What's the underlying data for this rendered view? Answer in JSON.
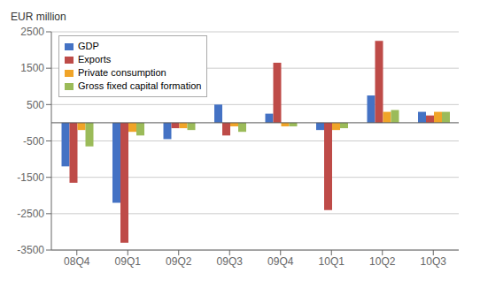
{
  "chart_data": {
    "type": "bar",
    "ylabel": "EUR million",
    "categories": [
      "08Q4",
      "09Q1",
      "09Q2",
      "09Q3",
      "09Q4",
      "10Q1",
      "10Q2",
      "10Q3"
    ],
    "series": [
      {
        "name": "GDP",
        "color": "#4472C4",
        "values": [
          -1200,
          -2200,
          -450,
          500,
          250,
          -200,
          750,
          300
        ]
      },
      {
        "name": "Exports",
        "color": "#BE4B48",
        "values": [
          -1650,
          -3300,
          -150,
          -350,
          1650,
          -2400,
          2250,
          200
        ]
      },
      {
        "name": "Private consumption",
        "color": "#F0A428",
        "values": [
          -200,
          -250,
          -150,
          -100,
          -100,
          -200,
          300,
          300
        ]
      },
      {
        "name": "Gross fixed capital formation",
        "color": "#9BBB59",
        "values": [
          -650,
          -350,
          -200,
          -250,
          -100,
          -150,
          350,
          300
        ]
      }
    ],
    "ylim": [
      -3500,
      2500
    ],
    "yticks": [
      -3500,
      -2500,
      -1500,
      -500,
      500,
      1500,
      2500
    ],
    "grid": true,
    "legend": "upper left"
  }
}
